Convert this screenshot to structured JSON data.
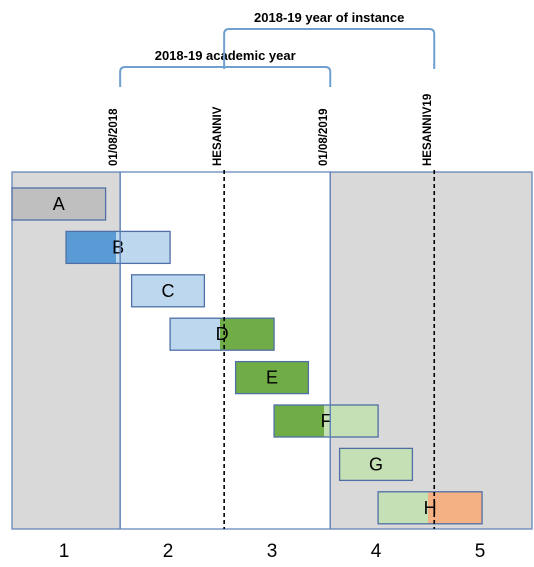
{
  "colors": {
    "grey_zone": "#d9d9d9",
    "zone_border": "#5b7fb5",
    "bracket": "#6fa0d0",
    "box_border": "#4f6fa6",
    "grey_box": "#bfbfbf",
    "dark_blue": "#5b9bd5",
    "light_blue": "#bdd7ee",
    "dark_green": "#70ad47",
    "light_green": "#c5e0b4",
    "orange": "#f4b183",
    "text": "#000000"
  },
  "brackets": {
    "academic_year": "2018-19 academic year",
    "year_of_instance": "2018-19 year of instance"
  },
  "markers": [
    {
      "label": "01/08/2018",
      "style": "solid"
    },
    {
      "label": "HESANNIV",
      "style": "dashed"
    },
    {
      "label": "01/08/2019",
      "style": "solid"
    },
    {
      "label": "HESANNIV19",
      "style": "dashed"
    }
  ],
  "columns": [
    "1",
    "2",
    "3",
    "4",
    "5"
  ],
  "bars": [
    {
      "label": "A",
      "start": 0.0,
      "end": 0.9,
      "fills": [
        {
          "to": 0.9,
          "color": "#bfbfbf"
        }
      ]
    },
    {
      "label": "B",
      "start": 0.52,
      "end": 1.52,
      "fills": [
        {
          "to": 1.0,
          "color": "#5b9bd5"
        },
        {
          "to": 1.52,
          "color": "#bdd7ee"
        }
      ]
    },
    {
      "label": "C",
      "start": 1.15,
      "end": 1.85,
      "fills": [
        {
          "to": 1.85,
          "color": "#bdd7ee"
        }
      ]
    },
    {
      "label": "D",
      "start": 1.52,
      "end": 2.52,
      "fills": [
        {
          "to": 2.0,
          "color": "#bdd7ee"
        },
        {
          "to": 2.52,
          "color": "#70ad47"
        }
      ]
    },
    {
      "label": "E",
      "start": 2.15,
      "end": 2.85,
      "fills": [
        {
          "to": 2.85,
          "color": "#70ad47"
        }
      ]
    },
    {
      "label": "F",
      "start": 2.52,
      "end": 3.52,
      "fills": [
        {
          "to": 3.0,
          "color": "#70ad47"
        },
        {
          "to": 3.52,
          "color": "#c5e0b4"
        }
      ]
    },
    {
      "label": "G",
      "start": 3.15,
      "end": 3.85,
      "fills": [
        {
          "to": 3.85,
          "color": "#c5e0b4"
        }
      ]
    },
    {
      "label": "H",
      "start": 3.52,
      "end": 4.52,
      "fills": [
        {
          "to": 4.0,
          "color": "#c5e0b4"
        },
        {
          "to": 4.52,
          "color": "#f4b183"
        }
      ]
    }
  ]
}
